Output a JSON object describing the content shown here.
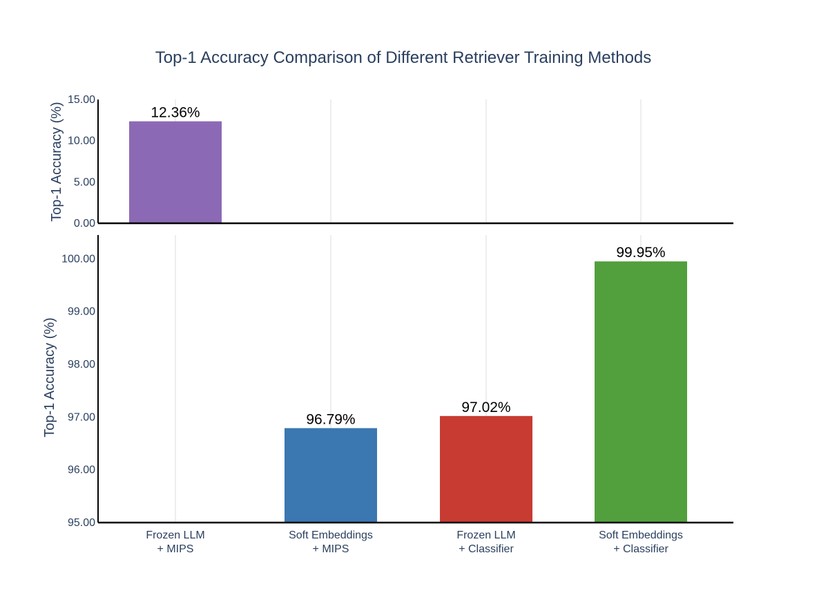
{
  "chart_data": {
    "type": "bar",
    "title": "Top-1 Accuracy Comparison of Different Retriever Training Methods",
    "categories": [
      [
        "Frozen LLM",
        "+ MIPS"
      ],
      [
        "Soft Embeddings",
        "+ MIPS"
      ],
      [
        "Frozen LLM",
        "+ Classifier"
      ],
      [
        "Soft Embeddings",
        "+ Classifier"
      ]
    ],
    "values": [
      12.36,
      96.79,
      97.02,
      99.95
    ],
    "data_labels": [
      "12.36%",
      "96.79%",
      "97.02%",
      "99.95%"
    ],
    "colors": [
      "#8c69b4",
      "#3b77b0",
      "#c83b33",
      "#529f3e"
    ],
    "broken_axis": true,
    "panels": [
      {
        "name": "upper",
        "ylabel": "Top-1 Accuracy (%)",
        "ylim": [
          0,
          15
        ],
        "yticks": [
          "0.00",
          "5.00",
          "10.00",
          "15.00"
        ],
        "show_categories": [
          0
        ]
      },
      {
        "name": "lower",
        "ylabel": "Top-1 Accuracy (%)",
        "ylim": [
          95,
          100.45
        ],
        "yticks": [
          "95.00",
          "96.00",
          "97.00",
          "98.00",
          "99.00",
          "100.00"
        ],
        "show_categories": [
          1,
          2,
          3
        ]
      }
    ],
    "grid": true,
    "legend": "none"
  }
}
